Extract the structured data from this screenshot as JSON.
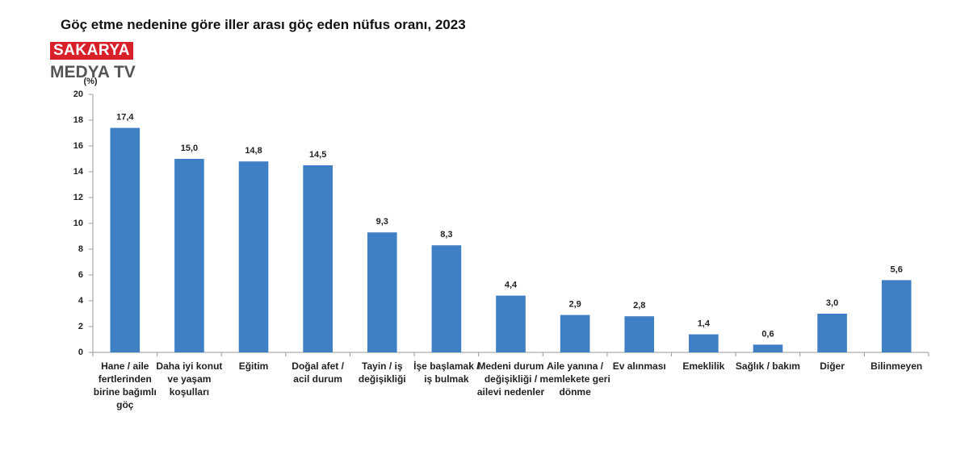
{
  "logo": {
    "name": "SAKARYA",
    "subtitle": "MEDYA TV"
  },
  "chart_data": {
    "type": "bar",
    "title": "Göç etme nedenine göre iller arası göç eden nüfus oranı, 2023",
    "y_label": "(%)",
    "categories": [
      "Hane / aile fertlerinden birine bağımlı göç",
      "Daha iyi konut ve yaşam koşulları",
      "Eğitim",
      "Doğal afet / acil durum",
      "Tayin / iş değişikliği",
      "İşe başlamak / iş bulmak",
      "Medeni durum değişikliği / ailevi nedenler",
      "Aile yanına / memlekete geri dönme",
      "Ev alınması",
      "Emeklilik",
      "Sağlık / bakım",
      "Diğer",
      "Bilinmeyen"
    ],
    "values": [
      17.4,
      15.0,
      14.8,
      14.5,
      9.3,
      8.3,
      4.4,
      2.9,
      2.8,
      1.4,
      0.6,
      3.0,
      5.6
    ],
    "value_labels": [
      "17,4",
      "15,0",
      "14,8",
      "14,5",
      "9,3",
      "8,3",
      "4,4",
      "2,9",
      "2,8",
      "1,4",
      "0,6",
      "3,0",
      "5,6"
    ],
    "color": "#3f7fc3",
    "ylim": [
      0,
      20
    ],
    "yticks": [
      0,
      2,
      4,
      6,
      8,
      10,
      12,
      14,
      16,
      18,
      20
    ],
    "grid": false
  }
}
